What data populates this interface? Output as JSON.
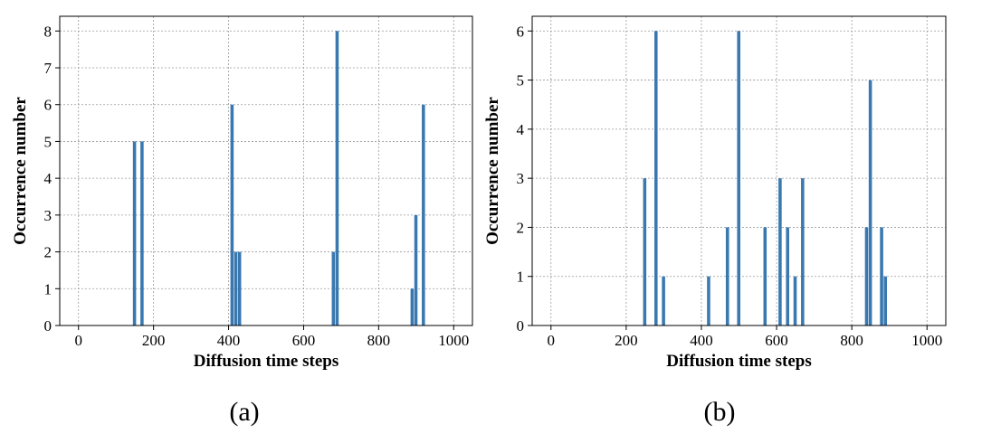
{
  "chart_data": [
    {
      "type": "bar",
      "caption": "(a)",
      "xlabel": "Diffusion time steps",
      "ylabel": "Occurrence number",
      "xlim": [
        -50,
        1050
      ],
      "ylim": [
        0,
        8.4
      ],
      "xticks": [
        0,
        200,
        400,
        600,
        800,
        1000
      ],
      "yticks": [
        0,
        1,
        2,
        3,
        4,
        5,
        6,
        7,
        8
      ],
      "bar_width": 10,
      "grid": true,
      "color": "#3a78b0",
      "x": [
        150,
        170,
        410,
        420,
        430,
        680,
        690,
        890,
        900,
        920
      ],
      "values": [
        5,
        5,
        6,
        2,
        2,
        2,
        8,
        1,
        3,
        6
      ]
    },
    {
      "type": "bar",
      "caption": "(b)",
      "xlabel": "Diffusion time steps",
      "ylabel": "Occurrence number",
      "xlim": [
        -50,
        1050
      ],
      "ylim": [
        0,
        6.3
      ],
      "xticks": [
        0,
        200,
        400,
        600,
        800,
        1000
      ],
      "yticks": [
        0,
        1,
        2,
        3,
        4,
        5,
        6
      ],
      "bar_width": 10,
      "grid": true,
      "color": "#3a78b0",
      "x": [
        250,
        280,
        300,
        420,
        470,
        500,
        570,
        610,
        630,
        650,
        670,
        840,
        850,
        880,
        890
      ],
      "values": [
        3,
        6,
        1,
        1,
        2,
        6,
        2,
        3,
        2,
        1,
        3,
        2,
        5,
        2,
        1
      ]
    }
  ]
}
